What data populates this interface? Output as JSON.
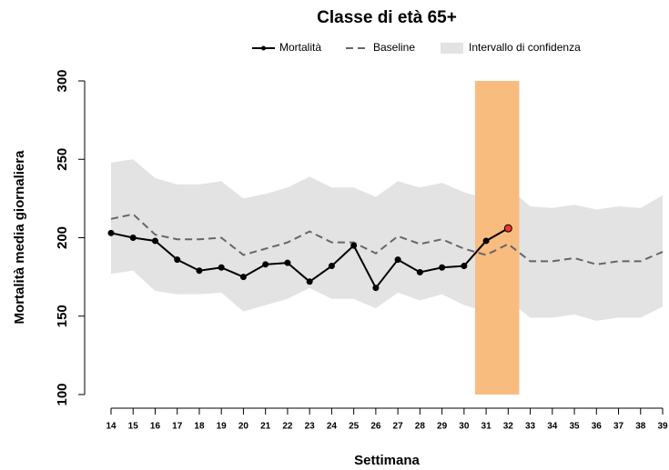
{
  "chart_data": {
    "type": "line",
    "title": "Classe di età 65+",
    "x_label": "Settimana",
    "y_label": "Mortalità media giornaliera",
    "x": [
      14,
      15,
      16,
      17,
      18,
      19,
      20,
      21,
      22,
      23,
      24,
      25,
      26,
      27,
      28,
      29,
      30,
      31,
      32,
      33,
      34,
      35,
      36,
      37,
      38,
      39
    ],
    "xlim": [
      14,
      39
    ],
    "xticks": [
      14,
      15,
      16,
      17,
      18,
      19,
      20,
      21,
      22,
      23,
      24,
      25,
      26,
      27,
      28,
      29,
      30,
      31,
      32,
      33,
      34,
      35,
      36,
      37,
      38,
      39
    ],
    "ylim": [
      100,
      300
    ],
    "yticks": [
      100,
      150,
      200,
      250,
      300
    ],
    "band": {
      "name": "Intervallo di confidenza",
      "color": "#e3e3e3",
      "upper": [
        248,
        250,
        238,
        234,
        234,
        236,
        225,
        228,
        232,
        239,
        232,
        232,
        226,
        236,
        232,
        235,
        229,
        225,
        232,
        220,
        219,
        221,
        218,
        220,
        219,
        227
      ],
      "lower": [
        177,
        179,
        166,
        164,
        164,
        165,
        153,
        157,
        161,
        168,
        161,
        161,
        155,
        165,
        160,
        164,
        157,
        153,
        160,
        149,
        149,
        151,
        147,
        149,
        149,
        156
      ]
    },
    "highlight_range": [
      30.5,
      32.5
    ],
    "highlight_color": "#f9bc7f",
    "last_point_color": "#e8382f",
    "series": [
      {
        "name": "Mortalità",
        "color": "#000000",
        "dashed": false,
        "markers": true,
        "values": [
          203,
          200,
          198,
          186,
          179,
          181,
          175,
          183,
          184,
          172,
          182,
          195,
          168,
          186,
          178,
          181,
          182,
          198,
          206,
          null,
          null,
          null,
          null,
          null,
          null,
          null
        ]
      },
      {
        "name": "Baseline",
        "color": "#666666",
        "dashed": true,
        "markers": false,
        "values": [
          212,
          215,
          202,
          199,
          199,
          200,
          189,
          193,
          197,
          204,
          197,
          197,
          190,
          201,
          196,
          199,
          193,
          189,
          196,
          185,
          185,
          187,
          183,
          185,
          185,
          191
        ]
      }
    ]
  }
}
